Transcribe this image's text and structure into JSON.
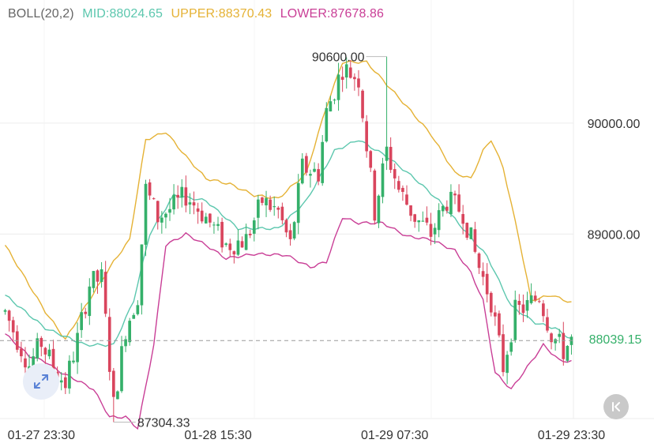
{
  "legend": {
    "label": "BOLL(20,2)",
    "mid": "MID:88024.65",
    "upper": "UPPER:88370.43",
    "lower": "LOWER:87678.86"
  },
  "current_price": "88039.15",
  "high_label": "90600.00",
  "low_label": "87304.33",
  "controls": {
    "expand_icon": "expand-arrows-icon",
    "back_icon": "skip-to-latest-icon"
  },
  "colors": {
    "up": "#35b06a",
    "down": "#d9455d",
    "mid": "#5cc7ae",
    "upper": "#e5b235",
    "lower": "#c93e96",
    "grid": "#ececec",
    "label": "#666666",
    "axis_text": "#333333"
  },
  "chart_data": {
    "type": "candlestick",
    "indicator": "BOLL(20,2)",
    "y_ticks": [
      {
        "value": 90000,
        "label": "90000.00"
      },
      {
        "value": 89000,
        "label": "89000.00"
      }
    ],
    "ylim": [
      87080,
      91110
    ],
    "x_ticks": [
      {
        "index": 9,
        "label": "01-27 23:30"
      },
      {
        "index": 53,
        "label": "01-28 15:30"
      },
      {
        "index": 97,
        "label": "01-29 07:30"
      },
      {
        "index": 141,
        "label": "01-29 23:30"
      }
    ],
    "x_count": 142,
    "current_price": 88039.15,
    "max_annotation": {
      "index": 95,
      "value": 90600.0,
      "label": "90600.00"
    },
    "min_annotation": {
      "index": 27,
      "value": 87304.33,
      "label": "87304.33"
    },
    "anchors": [
      [
        0,
        88300
      ],
      [
        3,
        88050
      ],
      [
        6,
        87820
      ],
      [
        9,
        88020
      ],
      [
        12,
        87800
      ],
      [
        15,
        87650
      ],
      [
        18,
        88050
      ],
      [
        21,
        88550
      ],
      [
        24,
        88600
      ],
      [
        27,
        87450
      ],
      [
        30,
        88150
      ],
      [
        33,
        88450
      ],
      [
        35,
        89400
      ],
      [
        38,
        89150
      ],
      [
        42,
        89250
      ],
      [
        45,
        89350
      ],
      [
        50,
        89150
      ],
      [
        55,
        88900
      ],
      [
        60,
        88950
      ],
      [
        64,
        89300
      ],
      [
        68,
        89200
      ],
      [
        71,
        88900
      ],
      [
        74,
        89600
      ],
      [
        78,
        89550
      ],
      [
        80,
        90100
      ],
      [
        84,
        90500
      ],
      [
        88,
        90400
      ],
      [
        92,
        89200
      ],
      [
        95,
        89750
      ],
      [
        98,
        89400
      ],
      [
        102,
        89150
      ],
      [
        106,
        89000
      ],
      [
        110,
        89300
      ],
      [
        114,
        89200
      ],
      [
        118,
        88700
      ],
      [
        121,
        88400
      ],
      [
        124,
        87800
      ],
      [
        127,
        88300
      ],
      [
        130,
        88350
      ],
      [
        133,
        88450
      ],
      [
        136,
        88100
      ],
      [
        139,
        87950
      ],
      [
        141,
        88040
      ]
    ],
    "upper_pts": [
      [
        0,
        88900
      ],
      [
        10,
        88300
      ],
      [
        15,
        88050
      ],
      [
        20,
        88350
      ],
      [
        27,
        88750
      ],
      [
        31,
        88950
      ],
      [
        35,
        89850
      ],
      [
        40,
        89920
      ],
      [
        45,
        89700
      ],
      [
        50,
        89500
      ],
      [
        56,
        89450
      ],
      [
        62,
        89350
      ],
      [
        68,
        89320
      ],
      [
        75,
        89550
      ],
      [
        80,
        90150
      ],
      [
        84,
        90550
      ],
      [
        90,
        90550
      ],
      [
        95,
        90350
      ],
      [
        100,
        90150
      ],
      [
        106,
        89900
      ],
      [
        112,
        89550
      ],
      [
        116,
        89500
      ],
      [
        119,
        89750
      ],
      [
        121,
        89850
      ],
      [
        124,
        89600
      ],
      [
        128,
        88950
      ],
      [
        131,
        88400
      ],
      [
        136,
        88450
      ],
      [
        141,
        88380
      ]
    ],
    "mid_pts": [
      [
        0,
        88450
      ],
      [
        10,
        88150
      ],
      [
        20,
        88000
      ],
      [
        27,
        88000
      ],
      [
        32,
        88400
      ],
      [
        36,
        89000
      ],
      [
        42,
        89350
      ],
      [
        50,
        89300
      ],
      [
        58,
        89050
      ],
      [
        68,
        89050
      ],
      [
        75,
        89300
      ],
      [
        82,
        89750
      ],
      [
        88,
        89850
      ],
      [
        95,
        89700
      ],
      [
        102,
        89500
      ],
      [
        108,
        89300
      ],
      [
        114,
        89050
      ],
      [
        120,
        88800
      ],
      [
        126,
        88350
      ],
      [
        132,
        88200
      ],
      [
        137,
        88150
      ],
      [
        141,
        88050
      ]
    ],
    "lower_pts": [
      [
        0,
        88100
      ],
      [
        6,
        87900
      ],
      [
        10,
        87850
      ],
      [
        14,
        87750
      ],
      [
        18,
        87680
      ],
      [
        22,
        87600
      ],
      [
        26,
        87350
      ],
      [
        30,
        87350
      ],
      [
        33,
        87250
      ],
      [
        37,
        88000
      ],
      [
        40,
        88900
      ],
      [
        45,
        89000
      ],
      [
        50,
        88900
      ],
      [
        55,
        88780
      ],
      [
        62,
        88820
      ],
      [
        70,
        88810
      ],
      [
        76,
        88700
      ],
      [
        80,
        88750
      ],
      [
        84,
        89150
      ],
      [
        88,
        89100
      ],
      [
        94,
        89100
      ],
      [
        100,
        88980
      ],
      [
        106,
        88950
      ],
      [
        112,
        88850
      ],
      [
        116,
        88650
      ],
      [
        119,
        88400
      ],
      [
        122,
        87750
      ],
      [
        126,
        87600
      ],
      [
        130,
        87800
      ],
      [
        134,
        88000
      ],
      [
        138,
        87860
      ],
      [
        141,
        87850
      ]
    ]
  }
}
